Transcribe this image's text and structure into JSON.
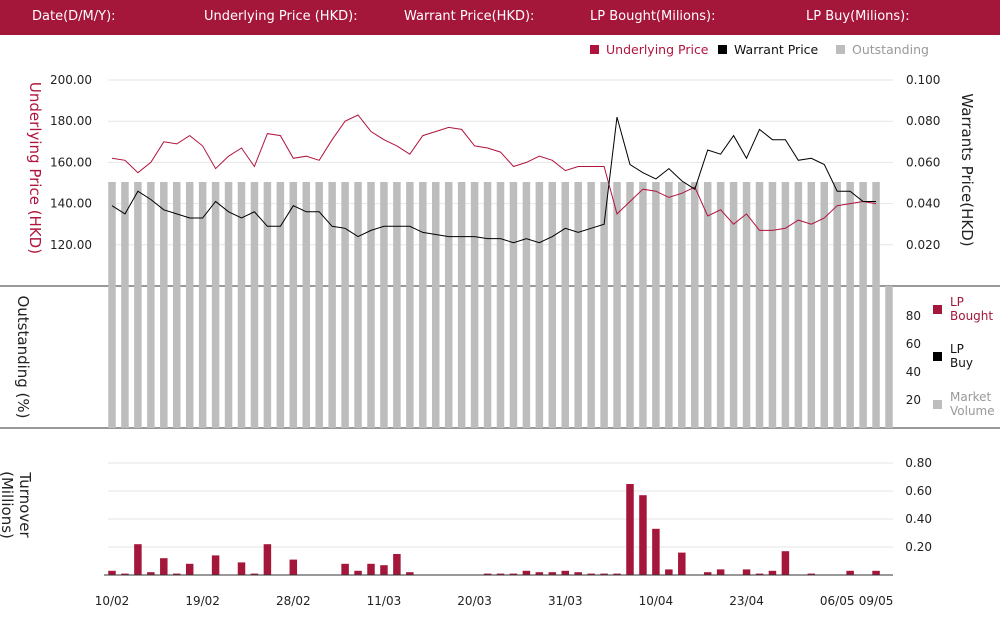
{
  "header": {
    "date_label": "Date(D/M/Y):",
    "underlying_label": "Underlying Price (HKD):",
    "warrant_label": "Warrant  Price(HKD):",
    "lp_bought_label": "LP Bought(Milions):",
    "lp_buy_label": "LP Buy(Milions):"
  },
  "colors": {
    "header_bg": "#a5163b",
    "underlying": "#b0143c",
    "warrant": "#000000",
    "outstanding": "#bdbdbd",
    "lp_bought": "#a5163b"
  },
  "chart_data": [
    {
      "type": "line",
      "legend": [
        "Underlying Price",
        "Warrant  Price",
        "Outstanding"
      ],
      "ylabel_left": "Underlying Price (HKD)",
      "ylabel_right": "Warrants  Price(HKD)",
      "yticks_left": [
        "120.00",
        "140.00",
        "160.00",
        "180.00",
        "200.00"
      ],
      "yticks_right": [
        "0.020",
        "0.040",
        "0.060",
        "0.080",
        "0.100"
      ],
      "ylim_left": [
        100,
        200
      ],
      "ylim_right": [
        0,
        0.1
      ],
      "series": [
        {
          "name": "Underlying Price",
          "axis": "left",
          "values": [
            162,
            161,
            155,
            160,
            170,
            169,
            173,
            168,
            157,
            163,
            167,
            158,
            174,
            173,
            162,
            163,
            161,
            171,
            180,
            183,
            175,
            171,
            168,
            164,
            173,
            175,
            177,
            176,
            168,
            167,
            165,
            158,
            160,
            163,
            161,
            156,
            158,
            158,
            158,
            135,
            141,
            147,
            146,
            143,
            145,
            148,
            134,
            137,
            130,
            135,
            127,
            127,
            128,
            132,
            130,
            133,
            139,
            140,
            141,
            140
          ]
        },
        {
          "name": "Warrant  Price",
          "axis": "right",
          "values": [
            0.039,
            0.035,
            0.046,
            0.042,
            0.037,
            0.035,
            0.033,
            0.033,
            0.041,
            0.036,
            0.033,
            0.036,
            0.029,
            0.029,
            0.039,
            0.036,
            0.036,
            0.029,
            0.028,
            0.024,
            0.027,
            0.029,
            0.029,
            0.029,
            0.026,
            0.025,
            0.024,
            0.024,
            0.024,
            0.023,
            0.023,
            0.021,
            0.023,
            0.021,
            0.024,
            0.028,
            0.026,
            0.028,
            0.03,
            0.082,
            0.059,
            0.055,
            0.052,
            0.057,
            0.051,
            0.047,
            0.066,
            0.064,
            0.073,
            0.062,
            0.076,
            0.071,
            0.071,
            0.061,
            0.062,
            0.059,
            0.046,
            0.046,
            0.041,
            0.041
          ]
        }
      ]
    },
    {
      "type": "bar",
      "ylabel": "Outstanding (%)",
      "yticks": [
        "20",
        "40",
        "60",
        "80"
      ],
      "ylim": [
        0,
        100
      ],
      "legend": [
        "LP Bought",
        "LP Buy",
        "Market Volume"
      ],
      "bar_count": 60
    },
    {
      "type": "bar",
      "ylabel": "Turnover (Millions)",
      "yticks": [
        "0.20",
        "0.40",
        "0.60",
        "0.80"
      ],
      "ylim": [
        0,
        0.9
      ],
      "series": [
        {
          "name": "LP Bought",
          "values": [
            0.03,
            0.01,
            0.22,
            0.02,
            0.12,
            0.01,
            0.08,
            0,
            0.14,
            0,
            0.09,
            0.01,
            0.22,
            0,
            0.11,
            0,
            0,
            0,
            0.08,
            0.03,
            0.08,
            0.07,
            0.15,
            0.02,
            0,
            0,
            0,
            0,
            0,
            0.01,
            0.01,
            0.01,
            0.03,
            0.02,
            0.02,
            0.03,
            0.02,
            0.01,
            0.01,
            0.01,
            0.65,
            0.57,
            0.33,
            0.04,
            0.16,
            0,
            0.02,
            0.04,
            0,
            0.04,
            0.01,
            0.03,
            0.17,
            0,
            0.01,
            0,
            0,
            0.03,
            0,
            0.03
          ]
        }
      ]
    }
  ],
  "x_axis": {
    "labels": [
      "10/02",
      "19/02",
      "28/02",
      "11/03",
      "20/03",
      "31/03",
      "10/04",
      "23/04",
      "06/05",
      "09/05"
    ],
    "label_index": [
      0,
      7,
      14,
      21,
      28,
      35,
      42,
      49,
      56,
      59
    ]
  }
}
